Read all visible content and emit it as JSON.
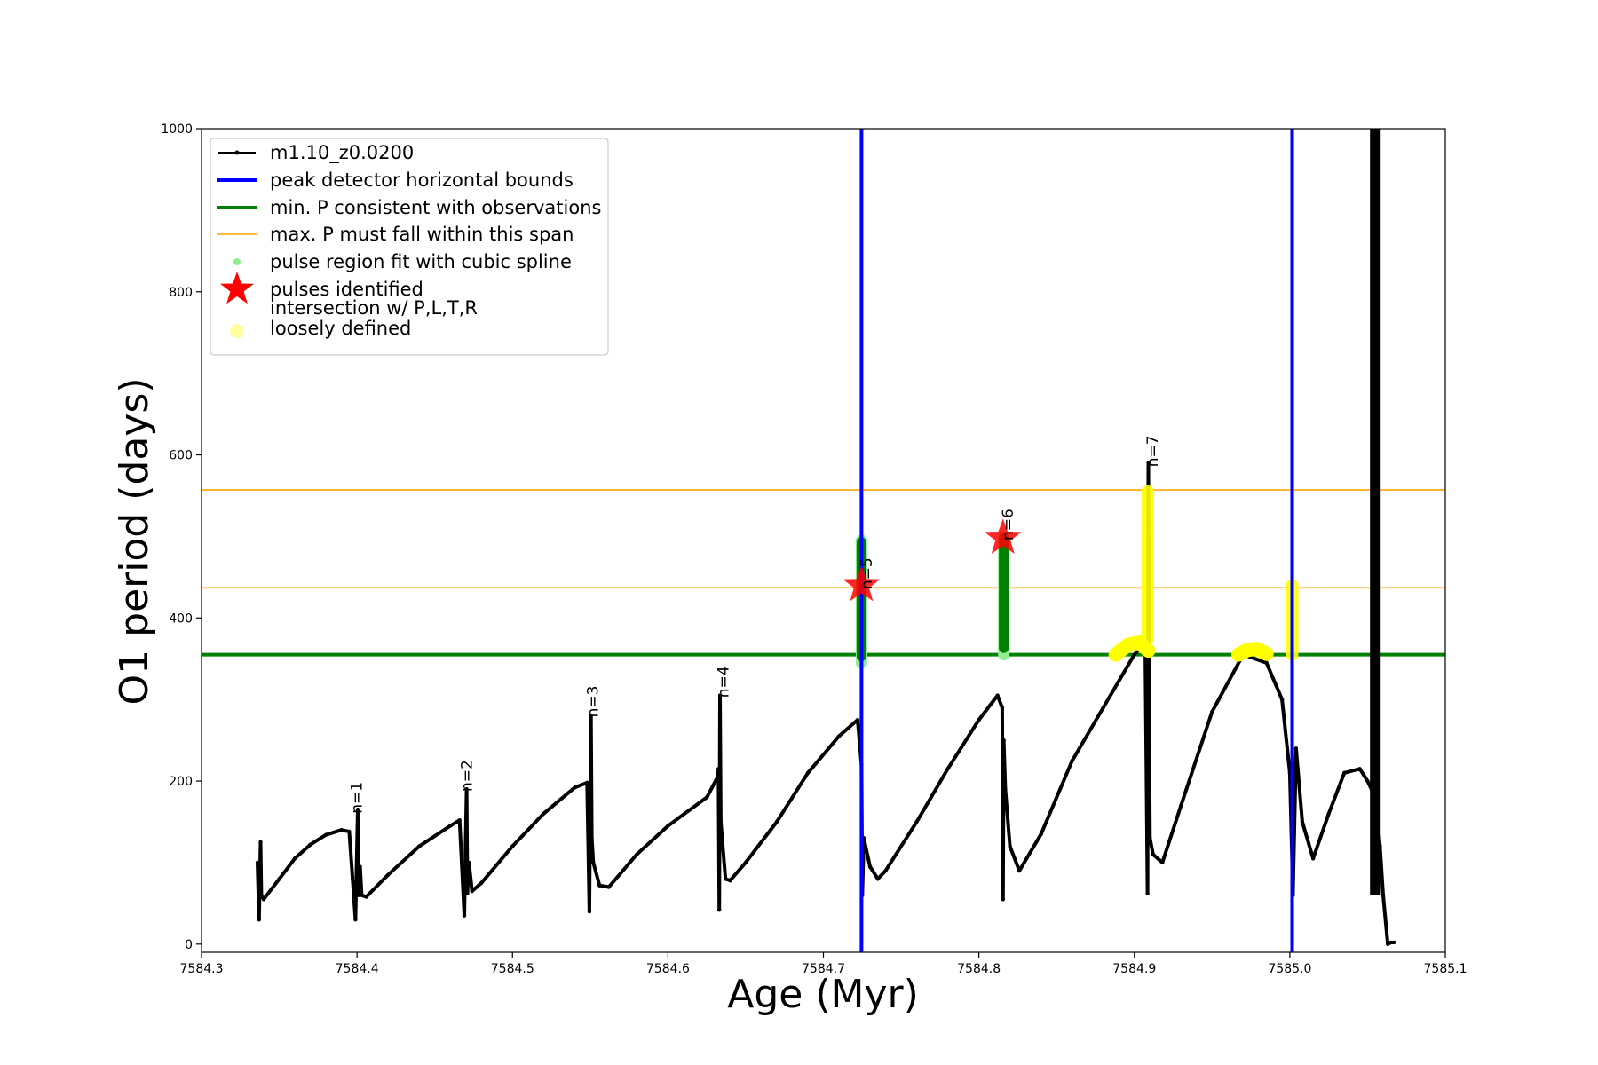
{
  "chart_data": {
    "type": "line",
    "title": "",
    "xlabel": "Age (Myr)",
    "ylabel": "O1 period (days)",
    "xlim": [
      7584.3,
      7585.1
    ],
    "ylim": [
      -10,
      1000
    ],
    "x_ticks": [
      7584.3,
      7584.4,
      7584.5,
      7584.6,
      7584.7,
      7584.8,
      7584.9,
      7585.0,
      7585.1
    ],
    "x_tick_labels": [
      "7584.3",
      "7584.4",
      "7584.5",
      "7584.6",
      "7584.7",
      "7584.8",
      "7584.9",
      "7585.0",
      "7585.1"
    ],
    "y_ticks": [
      0,
      200,
      400,
      600,
      800,
      1000
    ],
    "y_tick_labels": [
      "0",
      "200",
      "400",
      "600",
      "800",
      "1000"
    ],
    "grid": false,
    "legend_position": "top-left",
    "legend": [
      {
        "label": "m1.10_z0.0200",
        "kind": "line-dot",
        "color": "#000000"
      },
      {
        "label": "peak detector horizontal bounds",
        "kind": "line",
        "color": "#0000ff"
      },
      {
        "label": "min. P consistent with observations",
        "kind": "line",
        "color": "#008000"
      },
      {
        "label": "max. P must fall within this span",
        "kind": "line-thin",
        "color": "#ffa500"
      },
      {
        "label": "pulse region fit with cubic spline",
        "kind": "dot",
        "color": "#90ee90"
      },
      {
        "label": "pulses identified",
        "kind": "star",
        "color": "#ff0000"
      },
      {
        "label": "intersection w/ P,L,T,R\nloosely defined",
        "kind": "dot-large",
        "color": "#ffffa0"
      }
    ],
    "series": [
      {
        "name": "m1.10_z0.0200",
        "color": "#000000",
        "x": [
          7584.336,
          7584.337,
          7584.338,
          7584.3385,
          7584.34,
          7584.35,
          7584.36,
          7584.37,
          7584.38,
          7584.39,
          7584.395,
          7584.399,
          7584.4005,
          7584.401,
          7584.402,
          7584.403,
          7584.406,
          7584.42,
          7584.44,
          7584.46,
          7584.466,
          7584.469,
          7584.4705,
          7584.471,
          7584.472,
          7584.474,
          7584.48,
          7584.5,
          7584.52,
          7584.54,
          7584.548,
          7584.5495,
          7584.5505,
          7584.551,
          7584.552,
          7584.556,
          7584.562,
          7584.58,
          7584.6,
          7584.625,
          7584.632,
          7584.6325,
          7584.633,
          7584.6335,
          7584.634,
          7584.637,
          7584.64,
          7584.65,
          7584.67,
          7584.69,
          7584.71,
          7584.722,
          7584.7245,
          7584.725,
          7584.726,
          7584.73,
          7584.735,
          7584.74,
          7584.76,
          7584.78,
          7584.8,
          7584.812,
          7584.815,
          7584.8155,
          7584.816,
          7584.817,
          7584.82,
          7584.826,
          7584.84,
          7584.86,
          7584.88,
          7584.9,
          7584.907,
          7584.9085,
          7584.909,
          7584.9095,
          7584.91,
          7584.912,
          7584.918,
          7584.93,
          7584.95,
          7584.97,
          7584.985,
          7584.995,
          7585.0,
          7585.002,
          7585.004,
          7585.008,
          7585.015,
          7585.025,
          7585.035,
          7585.045,
          7585.05,
          7585.055,
          7585.058,
          7585.06,
          7585.063,
          7585.065,
          7585.067
        ],
        "y": [
          100,
          30,
          125,
          60,
          55,
          80,
          105,
          122,
          134,
          140,
          138,
          30,
          165,
          60,
          95,
          60,
          58,
          85,
          120,
          145,
          152,
          35,
          190,
          62,
          100,
          65,
          75,
          120,
          160,
          192,
          198,
          40,
          280,
          130,
          100,
          72,
          70,
          110,
          145,
          180,
          205,
          215,
          42,
          305,
          150,
          80,
          78,
          100,
          150,
          210,
          255,
          275,
          220,
          60,
          130,
          95,
          80,
          90,
          150,
          215,
          275,
          305,
          290,
          55,
          250,
          190,
          120,
          90,
          135,
          225,
          290,
          355,
          370,
          62,
          590,
          280,
          130,
          110,
          100,
          170,
          285,
          355,
          345,
          300,
          210,
          60,
          240,
          150,
          105,
          160,
          210,
          215,
          200,
          180,
          120,
          60,
          0,
          2,
          2
        ]
      }
    ],
    "dense_band": {
      "x": 7585.055,
      "y_range": [
        60,
        1000
      ],
      "color": "#000000"
    },
    "vertical_lines": [
      {
        "x": 7584.7245,
        "color": "#0000ff"
      },
      {
        "x": 7585.0015,
        "color": "#0000ff"
      }
    ],
    "horizontal_lines": [
      {
        "y": 355,
        "color": "#008000",
        "role": "min. P consistent with observations"
      },
      {
        "y": 437,
        "color": "#ffa500",
        "role": "max. P span lower"
      },
      {
        "y": 557,
        "color": "#ffa500",
        "role": "max. P span upper"
      }
    ],
    "spline_regions": [
      {
        "x": 7584.7245,
        "y_range": [
          345,
          495
        ]
      },
      {
        "x": 7584.816,
        "y_range": [
          355,
          500
        ]
      }
    ],
    "pulses_identified": [
      {
        "x": 7584.7245,
        "y": 440
      },
      {
        "x": 7584.8155,
        "y": 498
      }
    ],
    "intersections": [
      {
        "kind": "vertical",
        "x": 7584.9085,
        "y_range": [
          375,
          555
        ]
      },
      {
        "kind": "vertical",
        "x": 7585.0015,
        "y_range": [
          355,
          440
        ]
      },
      {
        "kind": "arc",
        "x": [
          7584.888,
          7584.896,
          7584.903,
          7584.909
        ],
        "y": [
          355,
          367,
          370,
          360
        ]
      },
      {
        "kind": "arc",
        "x": [
          7584.967,
          7584.973,
          7584.979,
          7584.985
        ],
        "y": [
          355,
          361,
          362,
          356
        ]
      }
    ],
    "pulse_labels": [
      {
        "text": "n=1",
        "x": 7584.403,
        "y": 160
      },
      {
        "text": "n=2",
        "x": 7584.474,
        "y": 187
      },
      {
        "text": "n=3",
        "x": 7584.555,
        "y": 278
      },
      {
        "text": "n=4",
        "x": 7584.639,
        "y": 302
      },
      {
        "text": "n=5",
        "x": 7584.731,
        "y": 435
      },
      {
        "text": "n=6",
        "x": 7584.822,
        "y": 495
      },
      {
        "text": "n=7",
        "x": 7584.915,
        "y": 585
      }
    ]
  }
}
